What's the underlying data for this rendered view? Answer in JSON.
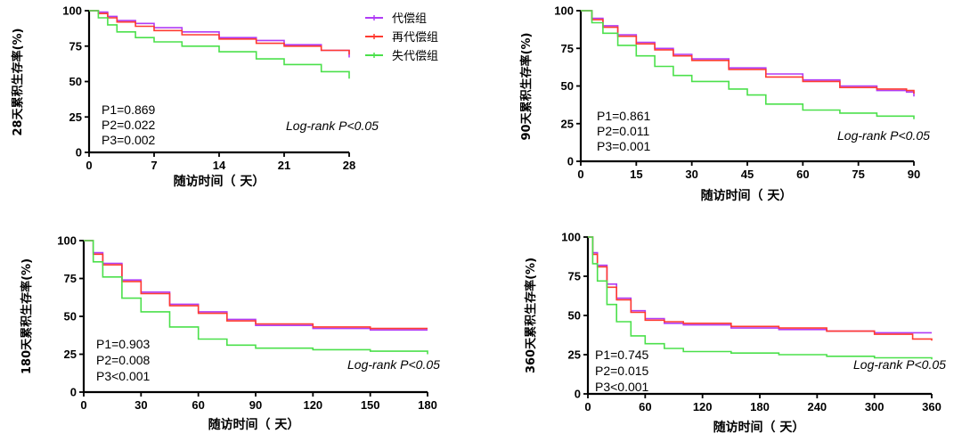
{
  "legend": {
    "position": "top-right of first panel",
    "items": [
      {
        "label": "代偿组",
        "color": "#b03cf5"
      },
      {
        "label": "再代偿组",
        "color": "#ff3b30"
      },
      {
        "label": "失代偿组",
        "color": "#4be04b"
      }
    ]
  },
  "chart_data": [
    {
      "type": "line",
      "ylabel": "28天累积生存率(%)",
      "xlabel": "随访时间（ 天）",
      "xlim": [
        0,
        28
      ],
      "ylim": [
        0,
        100
      ],
      "xticks": [
        0,
        7,
        14,
        21,
        28
      ],
      "yticks": [
        0,
        25,
        50,
        75,
        100
      ],
      "annotations": {
        "p": [
          "P1=0.869",
          "P2=0.022",
          "P3=0.002"
        ],
        "logrank": "Log-rank P<0.05"
      },
      "series": [
        {
          "name": "代偿组",
          "color": "#b03cf5",
          "x": [
            0,
            1,
            2,
            3,
            5,
            7,
            10,
            14,
            18,
            21,
            25,
            28
          ],
          "y": [
            100,
            99,
            96,
            93,
            91,
            88,
            85,
            81,
            79,
            76,
            72,
            67
          ]
        },
        {
          "name": "再代偿组",
          "color": "#ff3b30",
          "x": [
            0,
            1,
            2,
            3,
            5,
            7,
            10,
            14,
            18,
            21,
            25,
            28
          ],
          "y": [
            100,
            98,
            95,
            92,
            89,
            86,
            83,
            80,
            77,
            75,
            72,
            69
          ]
        },
        {
          "name": "失代偿组",
          "color": "#4be04b",
          "x": [
            0,
            1,
            2,
            3,
            5,
            7,
            10,
            14,
            18,
            21,
            25,
            28
          ],
          "y": [
            100,
            95,
            90,
            85,
            81,
            78,
            75,
            71,
            66,
            62,
            57,
            52
          ]
        }
      ]
    },
    {
      "type": "line",
      "ylabel": "90天累积生存率(%)",
      "xlabel": "随访时间（ 天）",
      "xlim": [
        0,
        90
      ],
      "ylim": [
        0,
        100
      ],
      "xticks": [
        0,
        15,
        30,
        45,
        60,
        75,
        90
      ],
      "yticks": [
        0,
        25,
        50,
        75,
        100
      ],
      "annotations": {
        "p": [
          "P1=0.861",
          "P2=0.011",
          "P3=0.001"
        ],
        "logrank": "Log-rank P<0.05"
      },
      "series": [
        {
          "name": "代偿组",
          "color": "#b03cf5",
          "x": [
            0,
            3,
            6,
            10,
            15,
            20,
            25,
            30,
            40,
            50,
            60,
            70,
            80,
            88,
            90
          ],
          "y": [
            100,
            95,
            90,
            84,
            79,
            75,
            71,
            68,
            62,
            58,
            54,
            50,
            47,
            46,
            43
          ]
        },
        {
          "name": "再代偿组",
          "color": "#ff3b30",
          "x": [
            0,
            3,
            6,
            10,
            15,
            20,
            25,
            30,
            40,
            50,
            60,
            70,
            80,
            88,
            90
          ],
          "y": [
            100,
            94,
            89,
            83,
            78,
            74,
            70,
            67,
            61,
            56,
            53,
            49,
            48,
            47,
            45
          ]
        },
        {
          "name": "失代偿组",
          "color": "#4be04b",
          "x": [
            0,
            3,
            6,
            10,
            15,
            20,
            25,
            30,
            40,
            45,
            50,
            60,
            70,
            80,
            90
          ],
          "y": [
            100,
            92,
            85,
            77,
            70,
            63,
            57,
            53,
            48,
            44,
            38,
            34,
            32,
            30,
            28
          ]
        }
      ]
    },
    {
      "type": "line",
      "ylabel": "180天累积生存率(%)",
      "xlabel": "随访时间（ 天）",
      "xlim": [
        0,
        180
      ],
      "ylim": [
        0,
        100
      ],
      "xticks": [
        0,
        30,
        60,
        90,
        120,
        150,
        180
      ],
      "yticks": [
        0,
        25,
        50,
        75,
        100
      ],
      "annotations": {
        "p": [
          "P1=0.903",
          "P2=0.008",
          "P3<0.001"
        ],
        "logrank": "Log-rank P<0.05"
      },
      "series": [
        {
          "name": "代偿组",
          "color": "#b03cf5",
          "x": [
            0,
            5,
            10,
            20,
            30,
            45,
            60,
            75,
            90,
            120,
            150,
            180
          ],
          "y": [
            100,
            92,
            85,
            74,
            66,
            58,
            53,
            48,
            44,
            42,
            41,
            41
          ]
        },
        {
          "name": "再代偿组",
          "color": "#ff3b30",
          "x": [
            0,
            5,
            10,
            20,
            30,
            45,
            60,
            75,
            90,
            120,
            150,
            180
          ],
          "y": [
            100,
            91,
            84,
            73,
            65,
            57,
            52,
            47,
            45,
            43,
            42,
            42
          ]
        },
        {
          "name": "失代偿组",
          "color": "#4be04b",
          "x": [
            0,
            5,
            10,
            20,
            30,
            45,
            60,
            75,
            90,
            120,
            150,
            180
          ],
          "y": [
            100,
            86,
            76,
            62,
            53,
            43,
            35,
            31,
            29,
            28,
            27,
            25
          ]
        }
      ]
    },
    {
      "type": "line",
      "ylabel": "360天累积生存率(%)",
      "xlabel": "随访时间（ 天）",
      "xlim": [
        0,
        360
      ],
      "ylim": [
        0,
        100
      ],
      "xticks": [
        0,
        60,
        120,
        180,
        240,
        300,
        360
      ],
      "yticks": [
        0,
        25,
        50,
        75,
        100
      ],
      "annotations": {
        "p": [
          "P1=0.745",
          "P2=0.015",
          "P3<0.001"
        ],
        "logrank": "Log-rank P<0.05"
      },
      "series": [
        {
          "name": "代偿组",
          "color": "#b03cf5",
          "x": [
            0,
            5,
            10,
            20,
            30,
            45,
            60,
            80,
            100,
            150,
            200,
            250,
            300,
            360
          ],
          "y": [
            100,
            90,
            82,
            70,
            61,
            53,
            48,
            45,
            44,
            42,
            41,
            40,
            39,
            39
          ]
        },
        {
          "name": "再代偿组",
          "color": "#ff3b30",
          "x": [
            0,
            5,
            10,
            20,
            30,
            45,
            60,
            80,
            100,
            150,
            200,
            250,
            300,
            340,
            360
          ],
          "y": [
            100,
            89,
            81,
            68,
            60,
            52,
            47,
            46,
            45,
            43,
            42,
            40,
            38,
            35,
            34
          ]
        },
        {
          "name": "失代偿组",
          "color": "#4be04b",
          "x": [
            0,
            5,
            10,
            20,
            30,
            45,
            60,
            80,
            100,
            150,
            200,
            250,
            300,
            360
          ],
          "y": [
            100,
            83,
            72,
            57,
            46,
            37,
            32,
            29,
            27,
            26,
            25,
            24,
            23,
            22
          ]
        }
      ]
    }
  ]
}
